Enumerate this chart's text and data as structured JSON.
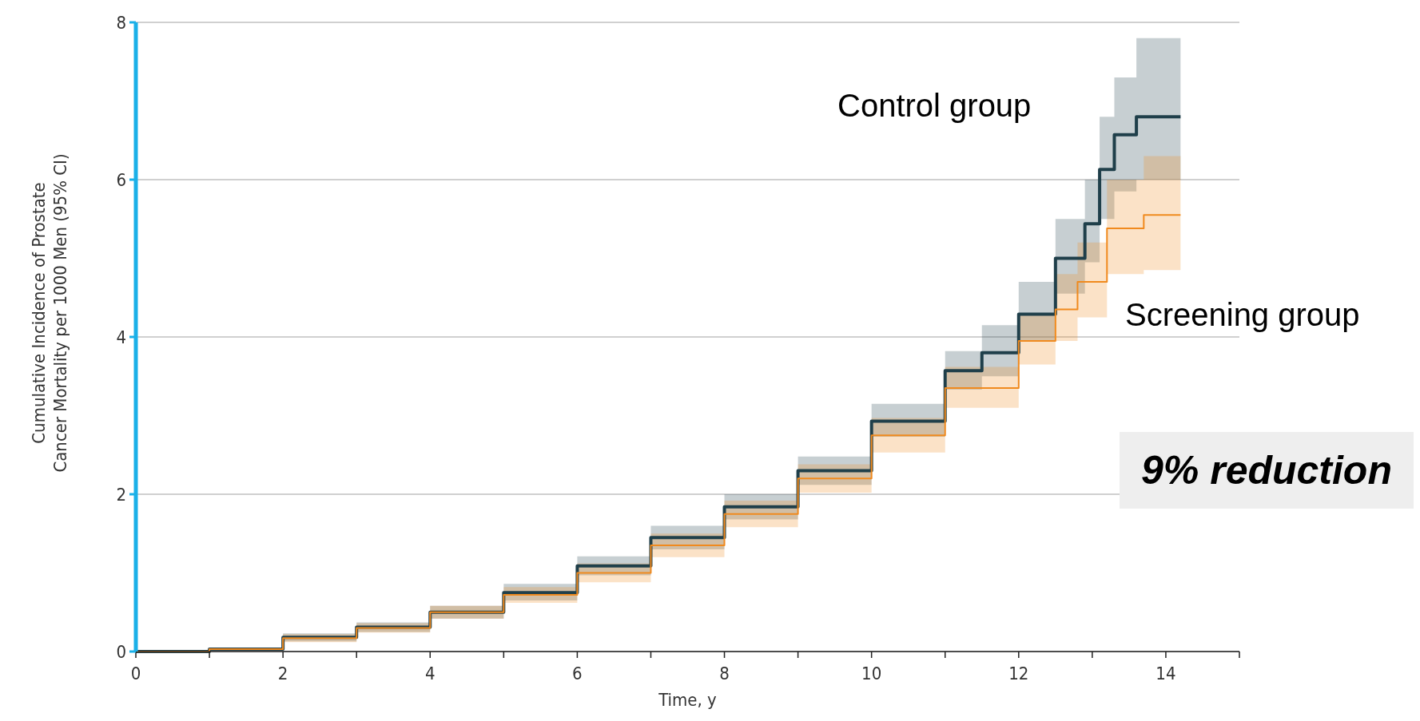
{
  "chart_data": {
    "type": "step",
    "xlabel": "Time, y",
    "ylabel": "Cumulative Incidence of Prostate Cancer Mortality per 1000 Men (95% CI)",
    "xlim": [
      0,
      15
    ],
    "ylim": [
      0,
      8
    ],
    "xticks": [
      0,
      {
        "value": 1,
        "label": null
      },
      2,
      {
        "value": 3,
        "label": null
      },
      4,
      {
        "value": 5,
        "label": null
      },
      6,
      {
        "value": 7,
        "label": null
      },
      8,
      {
        "value": 9,
        "label": null
      },
      10,
      {
        "value": 11,
        "label": null
      },
      12,
      {
        "value": 13,
        "label": null
      },
      14,
      {
        "value": 15,
        "label": null
      }
    ],
    "yticks": [
      0,
      2,
      4,
      6,
      8
    ],
    "grid": "y",
    "series": [
      {
        "name": "Control group",
        "color": "#1f3f4a",
        "x": [
          0,
          1,
          2,
          3,
          4,
          5,
          6,
          7,
          8,
          9,
          10,
          11,
          11.5,
          12,
          12.5,
          12.9,
          13.1,
          13.3,
          13.6,
          14.2
        ],
        "values": [
          0,
          0.03,
          0.18,
          0.31,
          0.5,
          0.75,
          1.09,
          1.45,
          1.84,
          2.3,
          2.93,
          3.57,
          3.8,
          4.29,
          5.0,
          5.44,
          6.13,
          6.57,
          6.8,
          6.8
        ],
        "lower": [
          0,
          0.01,
          0.13,
          0.25,
          0.42,
          0.65,
          0.97,
          1.3,
          1.68,
          2.12,
          2.73,
          3.33,
          3.5,
          3.95,
          4.55,
          4.95,
          5.5,
          5.85,
          6.0,
          6.0
        ],
        "upper": [
          0,
          0.05,
          0.23,
          0.37,
          0.58,
          0.86,
          1.21,
          1.6,
          2.0,
          2.48,
          3.15,
          3.82,
          4.15,
          4.7,
          5.5,
          6.0,
          6.8,
          7.3,
          7.8,
          7.8
        ]
      },
      {
        "name": "Screening group",
        "color": "#f08a1e",
        "x": [
          0,
          1,
          2,
          3,
          4,
          5,
          6,
          7,
          8,
          9,
          10,
          11,
          12,
          12.5,
          12.8,
          13.2,
          13.7,
          14.2
        ],
        "values": [
          0,
          0.03,
          0.17,
          0.3,
          0.5,
          0.72,
          1.0,
          1.35,
          1.75,
          2.2,
          2.75,
          3.35,
          3.95,
          4.35,
          4.7,
          5.38,
          5.55,
          5.55
        ],
        "lower": [
          0,
          0.01,
          0.12,
          0.24,
          0.42,
          0.62,
          0.88,
          1.2,
          1.58,
          2.02,
          2.53,
          3.1,
          3.65,
          3.95,
          4.25,
          4.8,
          4.85,
          4.85
        ],
        "upper": [
          0,
          0.05,
          0.22,
          0.36,
          0.58,
          0.82,
          1.12,
          1.5,
          1.92,
          2.38,
          2.97,
          3.62,
          4.28,
          4.8,
          5.2,
          6.0,
          6.3,
          6.3
        ]
      }
    ],
    "annotations": [
      "9% reduction"
    ]
  }
}
